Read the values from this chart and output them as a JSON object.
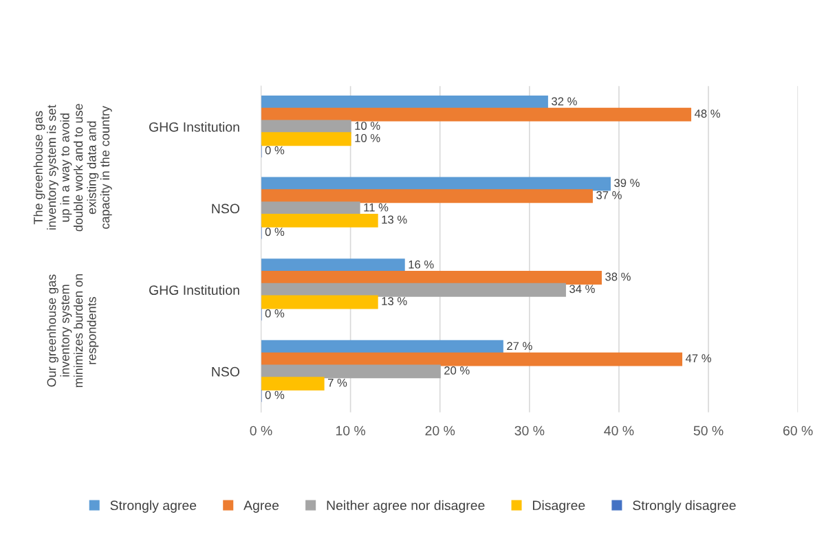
{
  "chart_data": {
    "type": "bar",
    "orientation": "horizontal",
    "categories": [
      "GHG Institution",
      "NSO",
      "GHG Institution",
      "NSO"
    ],
    "annotations": [
      "The greenhouse gas\ninventory system is set\nup in a way to avoid\ndouble work and to use\nexisting data and\ncapacity in the country",
      "Our greenhouse gas\ninventory system\nminimizes burden on\nrespondents"
    ],
    "series": [
      {
        "name": "Strongly agree",
        "color": "#5b9bd5",
        "values": [
          32,
          39,
          16,
          27
        ],
        "value_labels": [
          "32 %",
          "39 %",
          "16 %",
          "27 %"
        ]
      },
      {
        "name": "Agree",
        "color": "#ed7d31",
        "values": [
          48,
          37,
          38,
          47
        ],
        "value_labels": [
          "48 %",
          "37 %",
          "38 %",
          "47 %"
        ]
      },
      {
        "name": "Neither agree nor disagree",
        "color": "#a5a5a5",
        "values": [
          10,
          11,
          34,
          20
        ],
        "value_labels": [
          "10 %",
          "11 %",
          "34 %",
          "20 %"
        ]
      },
      {
        "name": "Disagree",
        "color": "#ffc000",
        "values": [
          10,
          13,
          13,
          7
        ],
        "value_labels": [
          "10 %",
          "13 %",
          "13 %",
          "7 %"
        ]
      },
      {
        "name": "Strongly disagree",
        "color": "#4472c4",
        "values": [
          0,
          0,
          0,
          0
        ],
        "value_labels": [
          "0 %",
          "0 %",
          "0 %",
          "0 %"
        ]
      }
    ],
    "xlim": [
      0,
      60
    ],
    "xticks": [
      {
        "value": 0,
        "label": "0 %"
      },
      {
        "value": 10,
        "label": "10 %"
      },
      {
        "value": 20,
        "label": "20 %"
      },
      {
        "value": 30,
        "label": "30 %"
      },
      {
        "value": 40,
        "label": "40 %"
      },
      {
        "value": 50,
        "label": "50 %"
      },
      {
        "value": 60,
        "label": "60 %"
      }
    ],
    "grid": "x",
    "legend": "bottom"
  }
}
